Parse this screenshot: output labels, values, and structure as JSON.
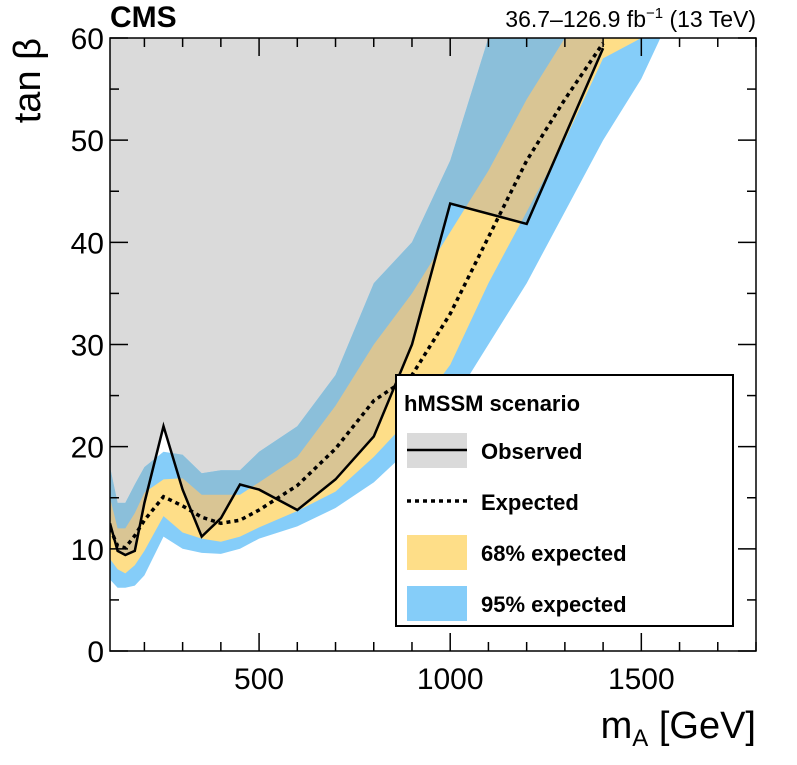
{
  "chart_data": {
    "type": "area",
    "experiment_label": "CMS",
    "lumi_label": "36.7–126.9 fb",
    "lumi_sup": "−1",
    "energy_label": " (13 TeV)",
    "xlabel_main": "m",
    "xlabel_sub": "A",
    "xlabel_unit": " [GeV]",
    "ylabel": "tan β",
    "xlim": [
      110,
      1800
    ],
    "ylim": [
      0,
      60
    ],
    "x_ticks": [
      500,
      1000,
      1500
    ],
    "x_tick_labels": [
      "500",
      "1000",
      "1500"
    ],
    "y_ticks": [
      0,
      10,
      20,
      30,
      40,
      50,
      60
    ],
    "y_tick_labels": [
      "0",
      "10",
      "20",
      "30",
      "40",
      "50",
      "60"
    ],
    "legend": {
      "title": "hMSSM scenario",
      "entries": [
        "Observed",
        "Expected",
        "68% expected",
        "95% expected"
      ]
    },
    "colors": {
      "observed_fill": "#dadada",
      "band68": "#fede88",
      "band95": "#85cdf9",
      "overlap68": "#d9c594",
      "overlap95": "#8bbfda",
      "line": "#000000"
    },
    "series": [
      {
        "name": "Observed",
        "x": [
          110,
          130,
          150,
          175,
          200,
          250,
          300,
          350,
          400,
          450,
          500,
          600,
          700,
          800,
          900,
          1000,
          1200,
          1400
        ],
        "y": [
          12.5,
          9.8,
          9.4,
          9.8,
          14.5,
          22.0,
          15.8,
          11.2,
          13.0,
          16.3,
          15.8,
          13.8,
          16.8,
          21.0,
          30.0,
          43.8,
          41.8,
          59.0
        ]
      },
      {
        "name": "Expected",
        "x": [
          110,
          130,
          150,
          175,
          200,
          250,
          300,
          350,
          400,
          450,
          500,
          600,
          700,
          800,
          900,
          1000,
          1100,
          1200,
          1300,
          1400
        ],
        "y": [
          12.0,
          10.3,
          10.1,
          11.3,
          12.8,
          15.1,
          14.2,
          13.1,
          12.5,
          12.8,
          13.8,
          16.2,
          19.8,
          24.5,
          27.0,
          33.0,
          40.5,
          48.0,
          54.0,
          59.5
        ]
      },
      {
        "name": "68% expected",
        "x": [
          110,
          130,
          150,
          175,
          200,
          250,
          300,
          350,
          400,
          450,
          500,
          600,
          700,
          800,
          900,
          1000,
          1100,
          1200,
          1300,
          1400,
          1500
        ],
        "low": [
          9.0,
          8.0,
          7.6,
          8.4,
          9.8,
          13.2,
          11.6,
          11.0,
          10.7,
          11.2,
          12.1,
          13.7,
          15.6,
          19.0,
          23.0,
          28.0,
          36.0,
          43.0,
          50.0,
          58.0,
          60.0
        ],
        "high": [
          15.0,
          12.0,
          12.0,
          13.5,
          15.5,
          16.8,
          16.9,
          15.3,
          15.3,
          15.3,
          16.5,
          19.0,
          24.0,
          30.0,
          35.0,
          41.0,
          47.0,
          54.0,
          60.0,
          60.0,
          60.0
        ]
      },
      {
        "name": "95% expected",
        "x": [
          110,
          130,
          150,
          175,
          200,
          250,
          300,
          350,
          400,
          450,
          500,
          600,
          700,
          800,
          900,
          1000,
          1100,
          1200,
          1300,
          1400,
          1500,
          1550
        ],
        "low": [
          7.0,
          6.2,
          6.2,
          6.4,
          7.4,
          11.2,
          10.0,
          9.6,
          9.5,
          10.0,
          11.0,
          12.2,
          14.0,
          16.5,
          20.0,
          24.0,
          30.0,
          36.0,
          43.0,
          50.0,
          56.0,
          60.0
        ],
        "high": [
          18.0,
          14.5,
          14.5,
          16.3,
          18.0,
          19.5,
          19.2,
          17.4,
          17.7,
          17.7,
          19.5,
          22.0,
          27.0,
          36.0,
          40.0,
          48.0,
          60.0,
          60.0,
          60.0,
          60.0,
          60.0,
          60.0
        ]
      }
    ]
  }
}
